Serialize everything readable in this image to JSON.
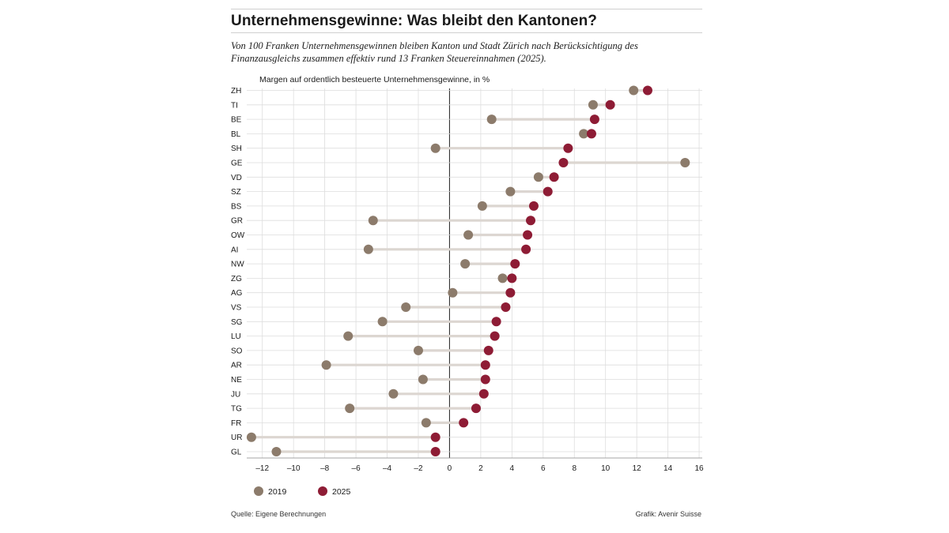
{
  "header": {
    "title": "Unternehmensgewinne: Was bleibt den Kantonen?",
    "subtitle": "Von 100 Franken Unternehmensgewinnen bleiben Kanton und Stadt Zürich nach Berücksichtigung des Finanzausgleichs zusammen effektiv rund 13 Franken Steuereinnahmen (2025)."
  },
  "footer": {
    "source": "Quelle: Eigene Berechnungen",
    "credit": "Grafik: Avenir Suisse"
  },
  "colors": {
    "series_2019": "#8c7b6b",
    "series_2025": "#8e1c35",
    "connector": "#dcd6d1",
    "grid": "#dddddd",
    "zero_line": "#333333"
  },
  "chart_data": {
    "type": "dumbbell",
    "title": "Margen auf ordentlich besteuerte Unternehmensgewinne, in %",
    "categories": [
      "ZH",
      "TI",
      "BE",
      "BL",
      "SH",
      "GE",
      "VD",
      "SZ",
      "BS",
      "GR",
      "OW",
      "AI",
      "NW",
      "ZG",
      "AG",
      "VS",
      "SG",
      "LU",
      "SO",
      "AR",
      "NE",
      "JU",
      "TG",
      "FR",
      "UR",
      "GL"
    ],
    "series": [
      {
        "name": "2019",
        "values": [
          11.8,
          9.2,
          2.7,
          8.6,
          -0.9,
          15.1,
          5.7,
          3.9,
          2.1,
          -4.9,
          1.2,
          -5.2,
          1.0,
          3.4,
          0.2,
          -2.8,
          -4.3,
          -6.5,
          -2.0,
          -7.9,
          -1.7,
          -3.6,
          -6.4,
          -1.5,
          -12.7,
          -11.1
        ]
      },
      {
        "name": "2025",
        "values": [
          12.7,
          10.3,
          9.3,
          9.1,
          7.6,
          7.3,
          6.7,
          6.3,
          5.4,
          5.2,
          5.0,
          4.9,
          4.2,
          4.0,
          3.9,
          3.6,
          3.0,
          2.9,
          2.5,
          2.3,
          2.3,
          2.2,
          1.7,
          0.9,
          -0.9,
          -0.9
        ]
      }
    ],
    "xlim": [
      -13,
      16.2
    ],
    "xticks": [
      -12,
      -10,
      -8,
      -6,
      -4,
      -2,
      0,
      2,
      4,
      6,
      8,
      10,
      12,
      14,
      16
    ],
    "xtick_labels": [
      "–12",
      "–10",
      "–8",
      "–6",
      "–4",
      "–2",
      "0",
      "2",
      "4",
      "6",
      "8",
      "10",
      "12",
      "14",
      "16"
    ],
    "grid": true,
    "legend": {
      "placement": "bottom-left",
      "entries": [
        "2019",
        "2025"
      ]
    }
  }
}
